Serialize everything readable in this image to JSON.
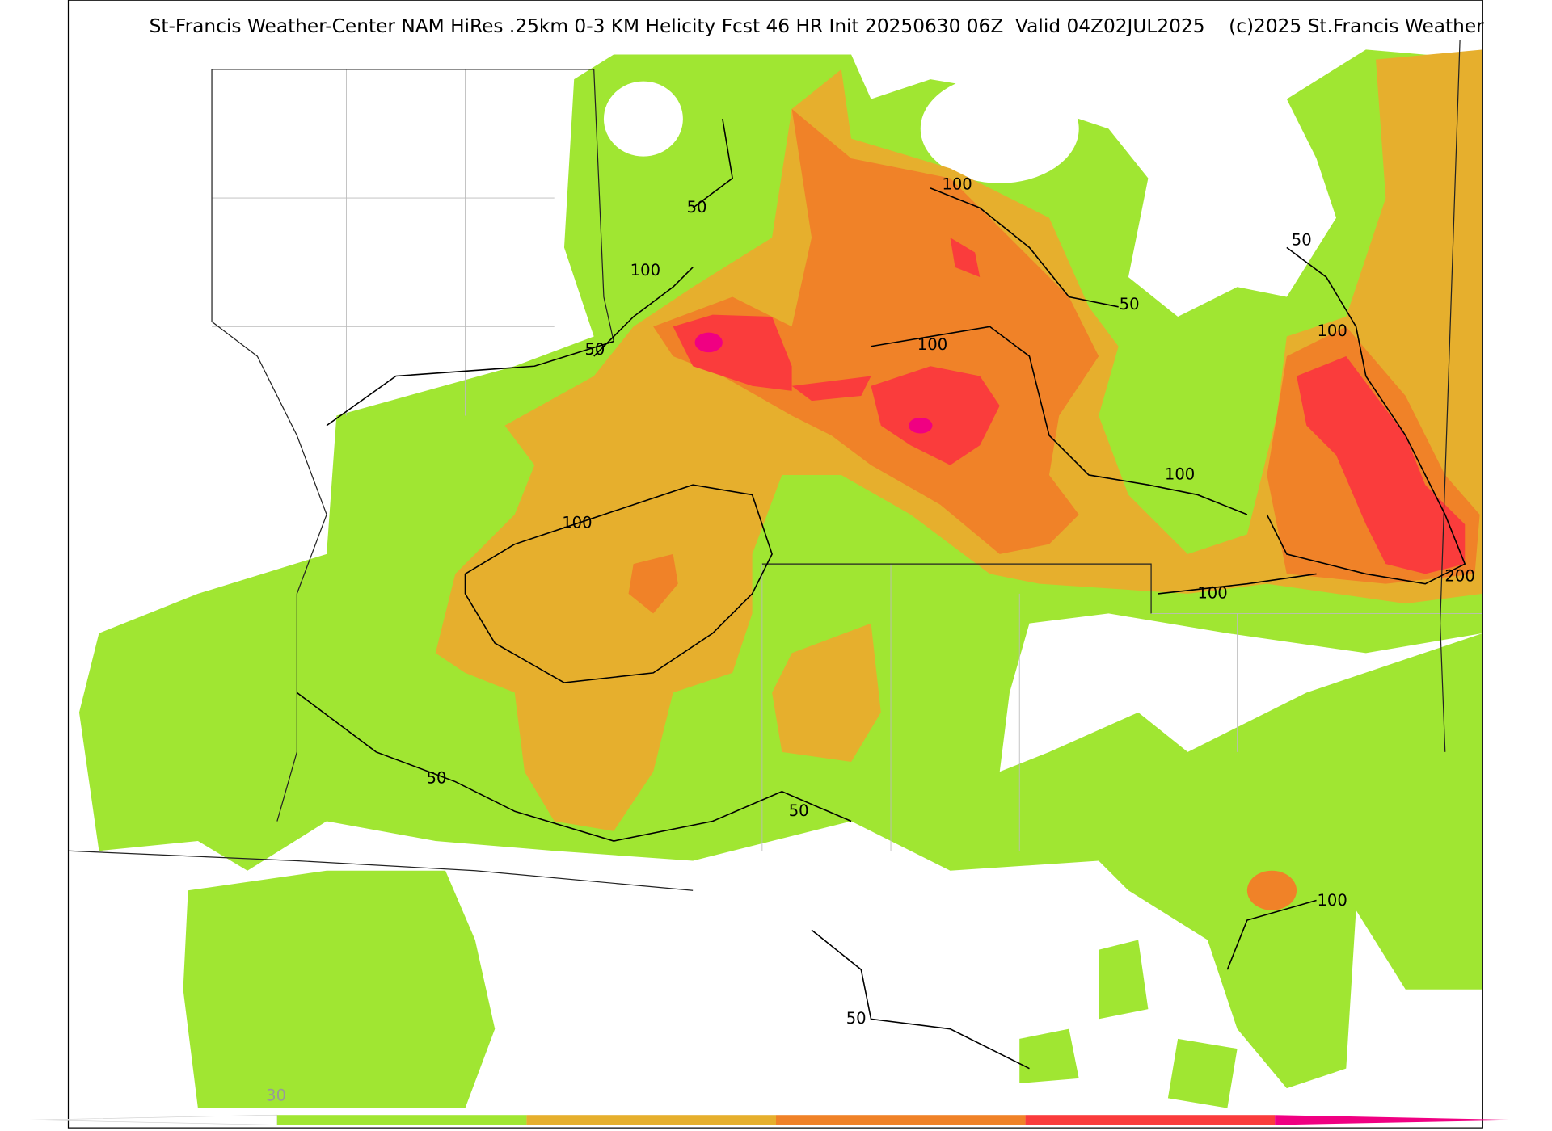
{
  "header": {
    "title": "St-Francis Weather-Center NAM HiRes .25km 0-3 KM Helicity Fcst 46 HR Init 20250630 06Z  Valid 04Z02JUL2025    (c)2025 St.Francis Weather"
  },
  "contour_labels": [
    "50",
    "100",
    "50",
    "100",
    "50",
    "100",
    "50",
    "100",
    "100",
    "200",
    "100",
    "100",
    "50",
    "50",
    "100",
    "50"
  ],
  "colorbar": {
    "labels": [
      "30"
    ]
  }
}
